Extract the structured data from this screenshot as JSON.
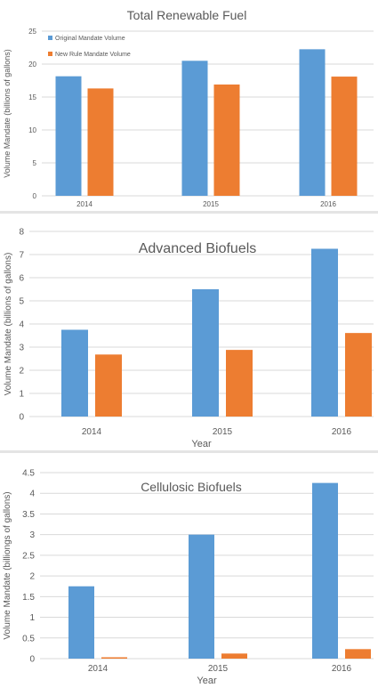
{
  "colors": {
    "original": "#5b9bd5",
    "new_rule": "#ed7d31",
    "grid": "#d9d9d9"
  },
  "chart_data": [
    {
      "type": "bar",
      "title": "Total Renewable Fuel",
      "xlabel": "",
      "ylabel": "Volume Mandate (billions of gallons)",
      "categories": [
        "2014",
        "2015",
        "2016"
      ],
      "ylim": [
        0,
        25
      ],
      "yticks": [
        0,
        5,
        10,
        15,
        20,
        25
      ],
      "grid": true,
      "legend": "top-left",
      "series": [
        {
          "name": "Original Mandate Volume",
          "values": [
            18.15,
            20.5,
            22.25
          ]
        },
        {
          "name": "New Rule Mandate Volume",
          "values": [
            16.3,
            16.9,
            18.1
          ]
        }
      ]
    },
    {
      "type": "bar",
      "title": "Advanced Biofuels",
      "xlabel": "Year",
      "ylabel": "Volume Mandate (billions of gallons)",
      "categories": [
        "2014",
        "2015",
        "2016"
      ],
      "ylim": [
        0,
        8
      ],
      "yticks": [
        0,
        1,
        2,
        3,
        4,
        5,
        6,
        7,
        8
      ],
      "grid": true,
      "legend": "none",
      "series": [
        {
          "values": [
            3.75,
            5.5,
            7.25
          ]
        },
        {
          "values": [
            2.68,
            2.88,
            3.61
          ]
        }
      ]
    },
    {
      "type": "bar",
      "title": "Cellulosic Biofuels",
      "xlabel": "Year",
      "ylabel": "Volume Mandate (billiongs of gallons)",
      "categories": [
        "2014",
        "2015",
        "2016"
      ],
      "ylim": [
        0,
        4.5
      ],
      "yticks": [
        0,
        0.5,
        1,
        1.5,
        2,
        2.5,
        3,
        3.5,
        4,
        4.5
      ],
      "grid": true,
      "legend": "none",
      "series": [
        {
          "values": [
            1.75,
            3.0,
            4.25
          ]
        },
        {
          "values": [
            0.033,
            0.123,
            0.23
          ]
        }
      ]
    }
  ]
}
